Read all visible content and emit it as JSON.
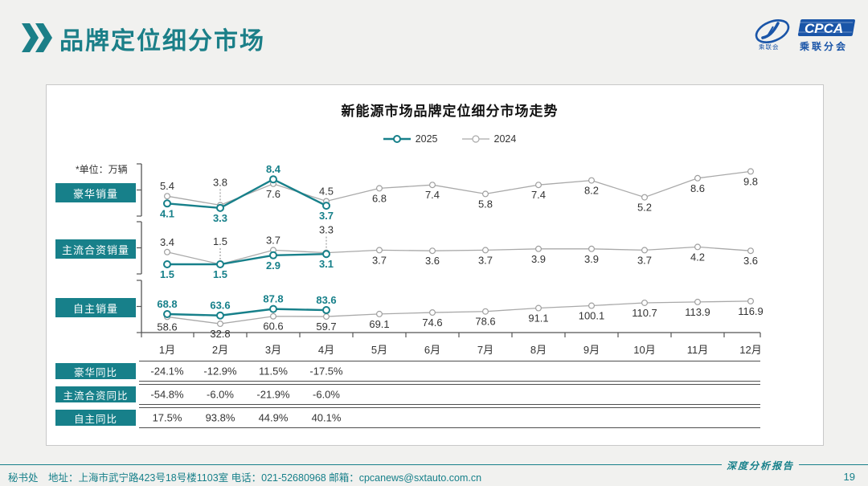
{
  "header": {
    "title": "品牌定位细分市场"
  },
  "logo": {
    "cpca": "CPCA",
    "subtext": "乘联分会",
    "mark_text": "乘联会"
  },
  "chart_data": {
    "type": "line",
    "title": "新能源市场品牌定位细分市场走势",
    "unit_note": "*单位：万辆",
    "legend_position": "top",
    "series_names": [
      "2025",
      "2024"
    ],
    "categories": [
      "1月",
      "2月",
      "3月",
      "4月",
      "5月",
      "6月",
      "7月",
      "8月",
      "9月",
      "10月",
      "11月",
      "12月"
    ],
    "panels": [
      {
        "name": "豪华销量",
        "series": [
          {
            "name": "2025",
            "values": [
              4.1,
              3.3,
              8.4,
              3.7
            ]
          },
          {
            "name": "2024",
            "values": [
              5.4,
              3.8,
              7.6,
              4.5,
              6.8,
              7.4,
              5.8,
              7.4,
              8.2,
              5.2,
              8.6,
              9.8
            ]
          }
        ]
      },
      {
        "name": "主流合资销量",
        "series": [
          {
            "name": "2025",
            "values": [
              1.5,
              1.5,
              2.9,
              3.1
            ]
          },
          {
            "name": "2024",
            "values": [
              3.4,
              1.5,
              3.7,
              3.3,
              3.7,
              3.6,
              3.7,
              3.9,
              3.9,
              3.7,
              4.2,
              3.6
            ]
          }
        ]
      },
      {
        "name": "自主销量",
        "series": [
          {
            "name": "2025",
            "values": [
              68.8,
              63.6,
              87.8,
              83.6
            ]
          },
          {
            "name": "2024",
            "values": [
              58.6,
              32.8,
              60.6,
              59.7,
              69.1,
              74.6,
              78.6,
              91.1,
              100.1,
              110.7,
              113.9,
              116.9
            ]
          }
        ]
      }
    ]
  },
  "table": {
    "rows": [
      {
        "label": "豪华同比",
        "values": [
          "-24.1%",
          "-12.9%",
          "11.5%",
          "-17.5%",
          "",
          "",
          "",
          "",
          "",
          "",
          "",
          ""
        ]
      },
      {
        "label": "主流合资同比",
        "values": [
          "-54.8%",
          "-6.0%",
          "-21.9%",
          "-6.0%",
          "",
          "",
          "",
          "",
          "",
          "",
          "",
          ""
        ]
      },
      {
        "label": "自主同比",
        "values": [
          "17.5%",
          "93.8%",
          "44.9%",
          "40.1%",
          "",
          "",
          "",
          "",
          "",
          "",
          "",
          ""
        ]
      }
    ]
  },
  "footer": {
    "left": "秘书处　地址：上海市武宁路423号18号楼1103室  电话：021-52680968   邮箱：cpcanews@sxtauto.com.cn",
    "report_label": "深度分析报告",
    "page": "19"
  },
  "colors": {
    "teal": "#17808a",
    "gray_line": "#a9a9a9",
    "axis": "#555555",
    "logo_blue": "#1a55a8",
    "text": "#333333"
  }
}
